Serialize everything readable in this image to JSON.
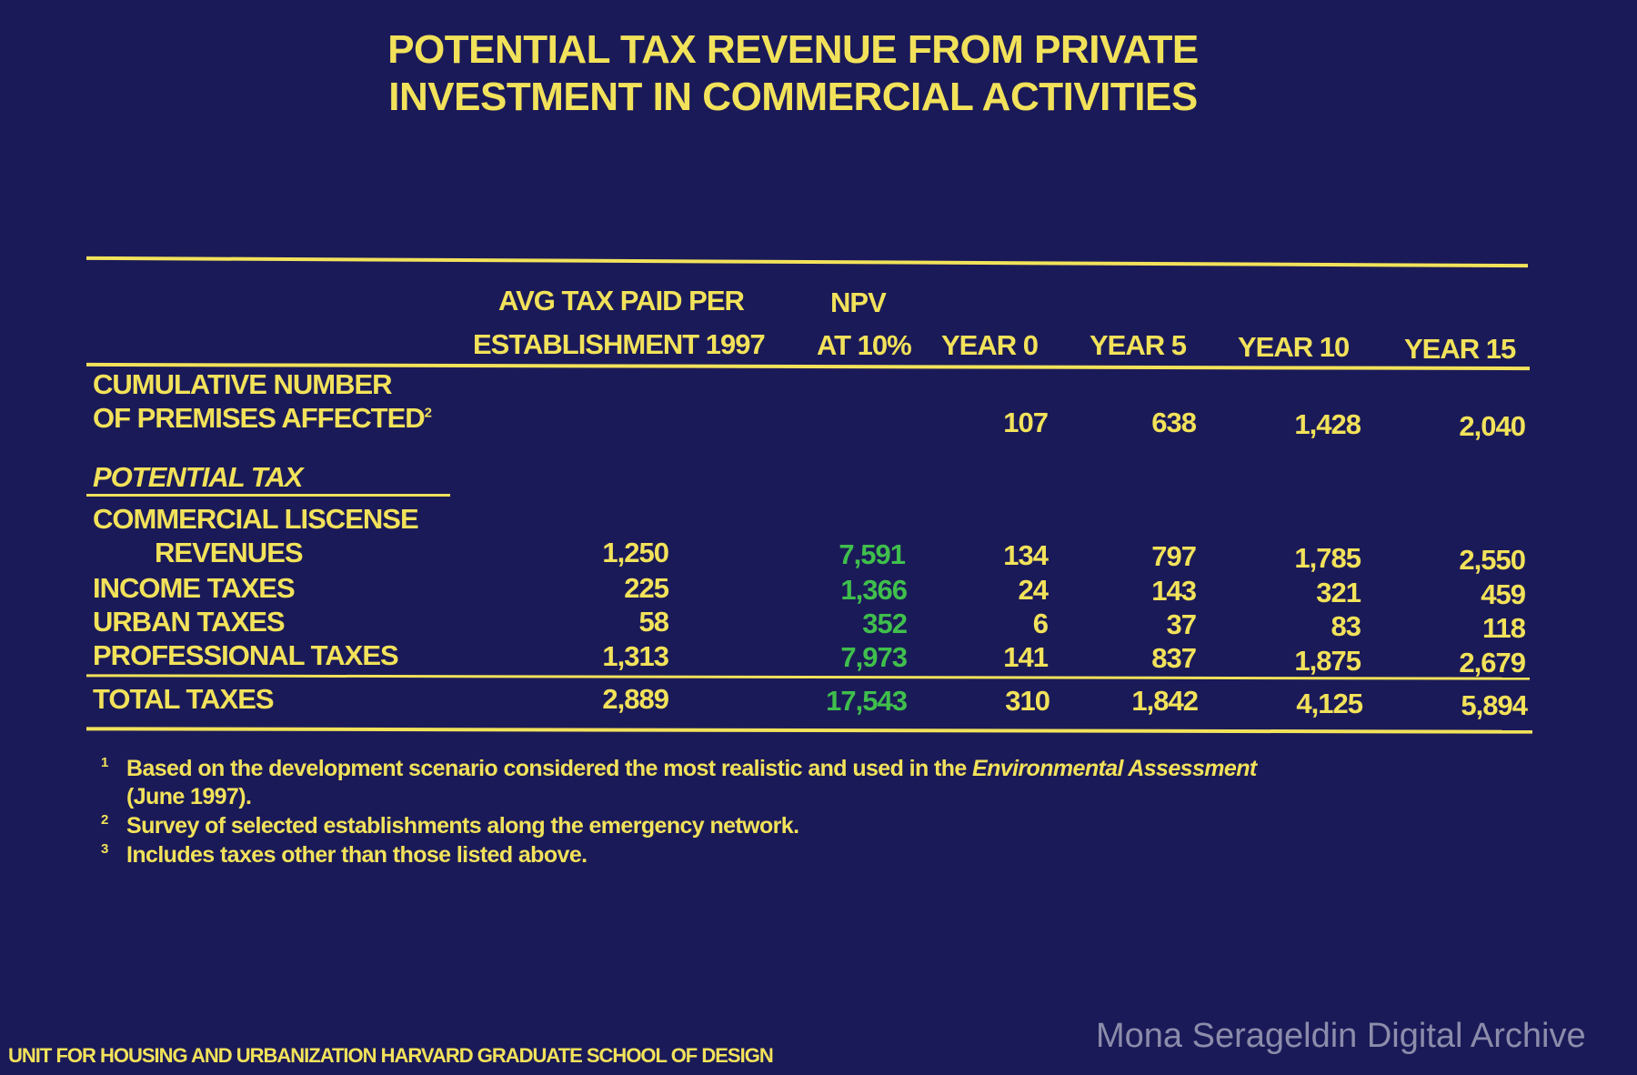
{
  "title": {
    "line1": "POTENTIAL TAX REVENUE FROM PRIVATE",
    "line2": "INVESTMENT IN COMMERCIAL ACTIVITIES"
  },
  "headers": {
    "avg_line1": "AVG TAX PAID PER",
    "avg_line2": "ESTABLISHMENT 1997",
    "npv_line1": "NPV",
    "npv_line2": "AT 10%",
    "year0": "YEAR 0",
    "year5": "YEAR 5",
    "year10": "YEAR 10",
    "year15": "YEAR 15"
  },
  "premises": {
    "label1": "CUMULATIVE NUMBER",
    "label2": "OF PREMISES AFFECTED",
    "sup": "2",
    "values": [
      "107",
      "638",
      "1,428",
      "2,040"
    ]
  },
  "section_label": "POTENTIAL TAX",
  "rows": [
    {
      "label": "COMMERCIAL LISCENSE",
      "label2": "REVENUES",
      "avg": "1,250",
      "npv": "7,591",
      "y0": "134",
      "y5": "797",
      "y10": "1,785",
      "y15": "2,550"
    },
    {
      "label": "INCOME TAXES",
      "avg": "225",
      "npv": "1,366",
      "y0": "24",
      "y5": "143",
      "y10": "321",
      "y15": "459"
    },
    {
      "label": "URBAN TAXES",
      "avg": "58",
      "npv": "352",
      "y0": "6",
      "y5": "37",
      "y10": "83",
      "y15": "118"
    },
    {
      "label": "PROFESSIONAL TAXES",
      "avg": "1,313",
      "npv": "7,973",
      "y0": "141",
      "y5": "837",
      "y10": "1,875",
      "y15": "2,679"
    }
  ],
  "total": {
    "label": "TOTAL TAXES",
    "avg": "2,889",
    "npv": "17,543",
    "y0": "310",
    "y5": "1,842",
    "y10": "4,125",
    "y15": "5,894"
  },
  "footnotes": [
    {
      "mark": "1",
      "text": "Based on the development scenario considered the most realistic and used in the ",
      "italic": "Environmental Assessment",
      "text2": "(June 1997)."
    },
    {
      "mark": "2",
      "text": "Survey of selected establishments along the emergency network."
    },
    {
      "mark": "3",
      "text": "Includes taxes other than those listed above."
    }
  ],
  "footer": "UNIT FOR HOUSING AND URBANIZATION HARVARD GRADUATE SCHOOL OF DESIGN",
  "watermark": "Mona Serageldin Digital Archive",
  "colors": {
    "background": "#1b1a58",
    "text": "#f2e25a",
    "npv": "#3fbf4c"
  }
}
